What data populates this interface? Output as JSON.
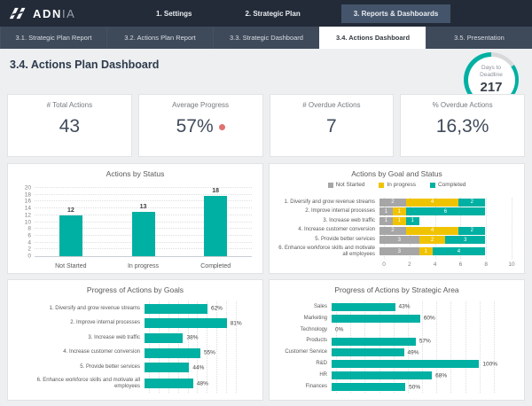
{
  "header": {
    "logo": {
      "brand_bold": "ADN",
      "brand_light": "IA"
    },
    "menu": [
      {
        "label": "1. Settings",
        "active": false
      },
      {
        "label": "2. Strategic Plan",
        "active": false
      },
      {
        "label": "3. Reports & Dashboards",
        "active": true
      }
    ]
  },
  "tabs": [
    {
      "label": "3.1. Strategic Plan Report",
      "active": false
    },
    {
      "label": "3.2. Actions Plan Report",
      "active": false
    },
    {
      "label": "3.3. Strategic Dashboard",
      "active": false
    },
    {
      "label": "3.4. Actions Dashboard",
      "active": true
    },
    {
      "label": "3.5. Presentation",
      "active": false
    }
  ],
  "page": {
    "title": "3.4. Actions Plan Dashboard"
  },
  "deadline": {
    "lines": [
      "Days to",
      "Deadline"
    ],
    "value": "217"
  },
  "kpis": [
    {
      "title": "# Total Actions",
      "value": "43",
      "dot": false
    },
    {
      "title": "Average Progress",
      "value": "57%",
      "dot": true
    },
    {
      "title": "# Overdue Actions",
      "value": "7",
      "dot": false
    },
    {
      "title": "% Overdue Actions",
      "value": "16,3%",
      "dot": false
    }
  ],
  "colors": {
    "teal": "#00B0A2",
    "yellow": "#F0C301",
    "gray": "#A6A6A6",
    "dot_red": "#DF716E",
    "navy": "#232B38",
    "slate": "#3E4959",
    "active_menu": "#44546A"
  },
  "chart_data": [
    {
      "id": "actions-by-status",
      "type": "bar",
      "title": "Actions by Status",
      "categories": [
        "Not Started",
        "In progress",
        "Completed"
      ],
      "values": [
        12,
        13,
        18
      ],
      "ylim": [
        0,
        20
      ],
      "ytick_step": 2,
      "bar_color": "teal",
      "grid": true,
      "legend": null
    },
    {
      "id": "actions-by-goal-and-status",
      "type": "stacked_bar_horizontal",
      "title": "Actions by Goal and Status",
      "legend": [
        "Not Started",
        "In progress",
        "Completed"
      ],
      "legend_position": "top",
      "categories": [
        "1. Diversify and grow revenue streams",
        "2. Improve internal processes",
        "3. Increase web traffic",
        "4. Increase customer conversion",
        "5. Provide better services",
        "6. Enhance workforce skills and motivate all employees"
      ],
      "series": [
        {
          "name": "Not Started",
          "color": "gray",
          "values": [
            2,
            1,
            1,
            2,
            3,
            3
          ]
        },
        {
          "name": "In progress",
          "color": "yellow",
          "values": [
            4,
            1,
            1,
            4,
            2,
            1
          ]
        },
        {
          "name": "Completed",
          "color": "teal",
          "values": [
            2,
            6,
            1,
            2,
            3,
            4
          ]
        }
      ],
      "xlim": [
        0,
        10
      ],
      "xticks": [
        0,
        2,
        4,
        6,
        8,
        10
      ],
      "grid": true
    },
    {
      "id": "progress-of-actions-by-goals",
      "type": "bar_horizontal",
      "title": "Progress of Actions by Goals",
      "categories": [
        "1. Diversify and grow revenue streams",
        "2. Improve internal processes",
        "3. Increase web traffic",
        "4. Increase customer conversion",
        "5. Provide better services",
        "6. Enhance workforce skills and motivate all employees"
      ],
      "values": [
        62,
        81,
        38,
        55,
        44,
        48
      ],
      "value_suffix": "%",
      "xlim": [
        0,
        90
      ],
      "grid_step": 10,
      "xaxis_labels": false,
      "bar_color": "teal",
      "grid": true
    },
    {
      "id": "progress-of-actions-by-strategic-area",
      "type": "bar_horizontal",
      "title": "Progress of Actions by Strategic Area",
      "categories": [
        "Sales",
        "Marketing",
        "Technology",
        "Products",
        "Customer Service",
        "R&D",
        "HR",
        "Finances"
      ],
      "values": [
        43,
        60,
        0,
        57,
        49,
        100,
        68,
        50
      ],
      "value_suffix": "%",
      "xlim": [
        0,
        110
      ],
      "grid_step": 10,
      "xaxis_labels": false,
      "bar_color": "teal",
      "grid": true
    }
  ]
}
